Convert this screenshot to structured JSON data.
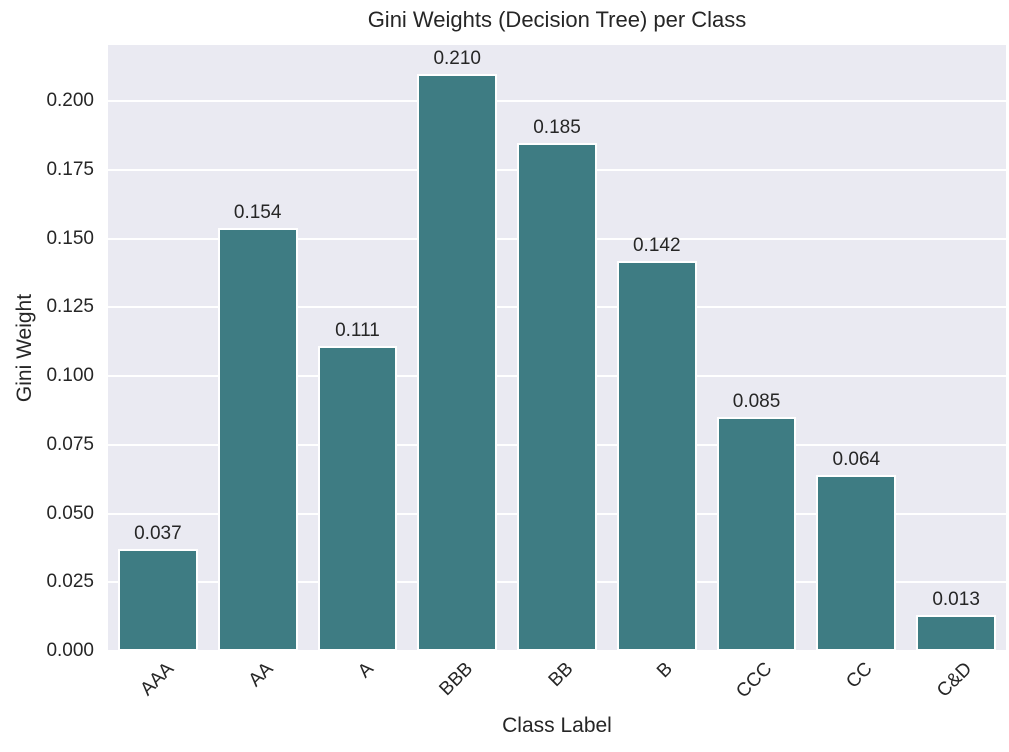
{
  "chart_data": {
    "type": "bar",
    "title": "Gini Weights (Decision Tree) per Class",
    "xlabel": "Class Label",
    "ylabel": "Gini Weight",
    "categories": [
      "AAA",
      "AA",
      "A",
      "BBB",
      "BB",
      "B",
      "CCC",
      "CC",
      "C&D"
    ],
    "values": [
      0.037,
      0.154,
      0.111,
      0.21,
      0.185,
      0.142,
      0.085,
      0.064,
      0.013
    ],
    "bar_value_labels": [
      "0.037",
      "0.154",
      "0.111",
      "0.210",
      "0.185",
      "0.142",
      "0.085",
      "0.064",
      "0.013"
    ],
    "ylim": [
      0,
      0.2205
    ],
    "yticks": [
      0.0,
      0.025,
      0.05,
      0.075,
      0.1,
      0.125,
      0.15,
      0.175,
      0.2
    ],
    "ytick_labels": [
      "0.000",
      "0.025",
      "0.050",
      "0.075",
      "0.100",
      "0.125",
      "0.150",
      "0.175",
      "0.200"
    ],
    "xtick_rotation_deg": 45,
    "bar_width_fraction": 0.8,
    "grid": {
      "horizontal": true,
      "vertical": false
    },
    "legend": null,
    "colors": {
      "bar_fill": "#3e7c83",
      "bar_edge": "#ffffff",
      "plot_background": "#eaeaf2",
      "gridline": "#ffffff",
      "figure_background": "#ffffff",
      "text": "#262626"
    }
  }
}
